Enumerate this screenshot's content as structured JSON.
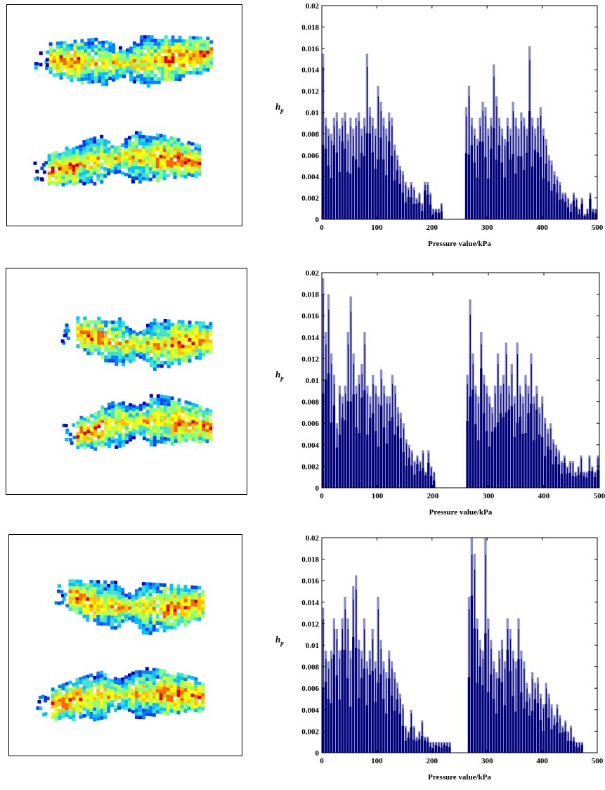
{
  "colors": {
    "bar": "#00007a",
    "bar_light": "#8c8cc8"
  },
  "chart_data": [
    {
      "type": "bar",
      "xlabel": "Pressure value/kPa",
      "ylabel_main": "h",
      "ylabel_sub": "p",
      "xlim": [
        0,
        500
      ],
      "ylim": [
        0,
        0.02
      ],
      "xticks": [
        "0",
        "100",
        "200",
        "300",
        "400",
        "500"
      ],
      "yticks": [
        "0",
        "0.002",
        "0.004",
        "0.006",
        "0.008",
        "0.01",
        "0.012",
        "0.014",
        "0.016",
        "0.018",
        "0.02"
      ],
      "x": [
        0,
        5,
        10,
        15,
        20,
        25,
        30,
        35,
        40,
        45,
        50,
        55,
        60,
        65,
        70,
        75,
        80,
        85,
        90,
        95,
        100,
        105,
        110,
        115,
        120,
        125,
        130,
        135,
        140,
        145,
        150,
        155,
        160,
        165,
        170,
        175,
        180,
        185,
        190,
        195,
        200,
        205,
        210,
        215,
        220,
        225,
        230,
        235,
        240,
        245,
        250,
        255,
        260,
        265,
        270,
        275,
        280,
        285,
        290,
        295,
        300,
        305,
        310,
        315,
        320,
        325,
        330,
        335,
        340,
        345,
        350,
        355,
        360,
        365,
        370,
        375,
        380,
        385,
        390,
        395,
        400,
        405,
        410,
        415,
        420,
        425,
        430,
        435,
        440,
        445,
        450,
        455,
        460,
        465,
        470,
        475,
        480,
        485,
        490,
        495
      ],
      "values": [
        0.0155,
        0.0095,
        0.0085,
        0.008,
        0.0095,
        0.01,
        0.0085,
        0.0095,
        0.01,
        0.008,
        0.0095,
        0.0085,
        0.0095,
        0.01,
        0.0085,
        0.0095,
        0.0155,
        0.0105,
        0.0095,
        0.0085,
        0.0125,
        0.011,
        0.0095,
        0.0085,
        0.01,
        0.0095,
        0.007,
        0.006,
        0.005,
        0.0045,
        0.0035,
        0.003,
        0.0035,
        0.003,
        0.002,
        0.0025,
        0.0015,
        0.0035,
        0.0035,
        0.0025,
        0.001,
        0.001,
        0.001,
        0.0015,
        0.0,
        0.0,
        0.0,
        0.0,
        0.0,
        0.0,
        0.0,
        0.0,
        0.0105,
        0.0125,
        0.0095,
        0.0085,
        0.0075,
        0.0095,
        0.011,
        0.0105,
        0.0085,
        0.0095,
        0.0145,
        0.0115,
        0.0095,
        0.0085,
        0.0075,
        0.0095,
        0.0085,
        0.011,
        0.0095,
        0.0085,
        0.01,
        0.0095,
        0.0085,
        0.0162,
        0.0095,
        0.0085,
        0.0095,
        0.0105,
        0.0085,
        0.0075,
        0.006,
        0.0055,
        0.0045,
        0.004,
        0.0035,
        0.0025,
        0.0025,
        0.002,
        0.0015,
        0.0025,
        0.002,
        0.001,
        0.002,
        0.0005,
        0.001,
        0.0025,
        0.001,
        0.001
      ]
    },
    {
      "type": "bar",
      "xlabel": "Pressure value/kPa",
      "ylabel_main": "h",
      "ylabel_sub": "p",
      "xlim": [
        0,
        500
      ],
      "ylim": [
        0,
        0.02
      ],
      "xticks": [
        "0",
        "100",
        "200",
        "300",
        "400",
        "500"
      ],
      "yticks": [
        "0",
        "0.002",
        "0.004",
        "0.006",
        "0.008",
        "0.01",
        "0.012",
        "0.014",
        "0.016",
        "0.018",
        "0.02"
      ],
      "x": [
        0,
        5,
        10,
        15,
        20,
        25,
        30,
        35,
        40,
        45,
        50,
        55,
        60,
        65,
        70,
        75,
        80,
        85,
        90,
        95,
        100,
        105,
        110,
        115,
        120,
        125,
        130,
        135,
        140,
        145,
        150,
        155,
        160,
        165,
        170,
        175,
        180,
        185,
        190,
        195,
        200,
        205,
        210,
        215,
        220,
        225,
        230,
        235,
        240,
        245,
        250,
        255,
        260,
        265,
        270,
        275,
        280,
        285,
        290,
        295,
        300,
        305,
        310,
        315,
        320,
        325,
        330,
        335,
        340,
        345,
        350,
        355,
        360,
        365,
        370,
        375,
        380,
        385,
        390,
        395,
        400,
        405,
        410,
        415,
        420,
        425,
        430,
        435,
        440,
        445,
        450,
        455,
        460,
        465,
        470,
        475,
        480,
        485,
        490,
        495
      ],
      "values": [
        0.0195,
        0.0145,
        0.018,
        0.0125,
        0.0105,
        0.006,
        0.0095,
        0.0085,
        0.0095,
        0.0145,
        0.0178,
        0.0125,
        0.0095,
        0.0105,
        0.0115,
        0.0145,
        0.0095,
        0.0085,
        0.0105,
        0.0095,
        0.0085,
        0.011,
        0.0095,
        0.0085,
        0.0085,
        0.0105,
        0.0095,
        0.0075,
        0.007,
        0.006,
        0.0045,
        0.004,
        0.0035,
        0.0025,
        0.003,
        0.0025,
        0.0035,
        0.0015,
        0.0035,
        0.002,
        0.0015,
        0.0,
        0.0,
        0.0,
        0.0,
        0.0,
        0.0,
        0.0,
        0.0,
        0.0,
        0.0,
        0.0,
        0.0105,
        0.0175,
        0.0125,
        0.0095,
        0.0085,
        0.0145,
        0.0105,
        0.0095,
        0.0085,
        0.0075,
        0.0095,
        0.0125,
        0.0095,
        0.0105,
        0.0135,
        0.0095,
        0.0115,
        0.0085,
        0.0135,
        0.0095,
        0.0085,
        0.0105,
        0.0095,
        0.0125,
        0.0085,
        0.0095,
        0.0075,
        0.0085,
        0.0065,
        0.0055,
        0.006,
        0.0045,
        0.004,
        0.0035,
        0.0025,
        0.003,
        0.002,
        0.0025,
        0.0025,
        0.0015,
        0.002,
        0.003,
        0.0015,
        0.0015,
        0.003,
        0.002,
        0.0015,
        0.003
      ]
    },
    {
      "type": "bar",
      "xlabel": "Pressure value/kPa",
      "ylabel_main": "h",
      "ylabel_sub": "p",
      "xlim": [
        0,
        500
      ],
      "ylim": [
        0,
        0.02
      ],
      "xticks": [
        "0",
        "100",
        "200",
        "300",
        "400",
        "500"
      ],
      "yticks": [
        "0",
        "0.002",
        "0.004",
        "0.006",
        "0.008",
        "0.01",
        "0.012",
        "0.014",
        "0.016",
        "0.018",
        "0.02"
      ],
      "x": [
        0,
        5,
        10,
        15,
        20,
        25,
        30,
        35,
        40,
        45,
        50,
        55,
        60,
        65,
        70,
        75,
        80,
        85,
        90,
        95,
        100,
        105,
        110,
        115,
        120,
        125,
        130,
        135,
        140,
        145,
        150,
        155,
        160,
        165,
        170,
        175,
        180,
        185,
        190,
        195,
        200,
        205,
        210,
        215,
        220,
        225,
        230,
        235,
        240,
        245,
        250,
        255,
        260,
        265,
        270,
        275,
        280,
        285,
        290,
        295,
        300,
        305,
        310,
        315,
        320,
        325,
        330,
        335,
        340,
        345,
        350,
        355,
        360,
        365,
        370,
        375,
        380,
        385,
        390,
        395,
        400,
        405,
        410,
        415,
        420,
        425,
        430,
        435,
        440,
        445,
        450,
        455,
        460,
        465,
        470,
        475,
        480,
        485,
        490,
        495
      ],
      "values": [
        0.0135,
        0.0095,
        0.0085,
        0.0095,
        0.0125,
        0.0115,
        0.0095,
        0.0125,
        0.0145,
        0.0125,
        0.0095,
        0.0155,
        0.0165,
        0.0105,
        0.0095,
        0.0125,
        0.0085,
        0.0095,
        0.0115,
        0.0085,
        0.0145,
        0.0105,
        0.0085,
        0.0075,
        0.0095,
        0.0085,
        0.0075,
        0.0065,
        0.0055,
        0.0045,
        0.0025,
        0.002,
        0.004,
        0.0025,
        0.0015,
        0.002,
        0.003,
        0.0015,
        0.0015,
        0.001,
        0.001,
        0.001,
        0.001,
        0.001,
        0.001,
        0.001,
        0.001,
        0.0,
        0.0,
        0.0,
        0.0,
        0.0,
        0.0,
        0.0145,
        0.02,
        0.0185,
        0.0125,
        0.0105,
        0.0095,
        0.02,
        0.0125,
        0.0105,
        0.0085,
        0.0075,
        0.0095,
        0.0105,
        0.0085,
        0.0125,
        0.0115,
        0.0095,
        0.0085,
        0.0125,
        0.0095,
        0.0085,
        0.0065,
        0.0055,
        0.0075,
        0.0065,
        0.007,
        0.0055,
        0.0045,
        0.0065,
        0.0055,
        0.0045,
        0.0035,
        0.0045,
        0.0035,
        0.0025,
        0.003,
        0.002,
        0.0025,
        0.0015,
        0.001,
        0.001,
        0.001,
        0.0,
        0.0,
        0.0,
        0.0,
        0.0
      ]
    }
  ]
}
